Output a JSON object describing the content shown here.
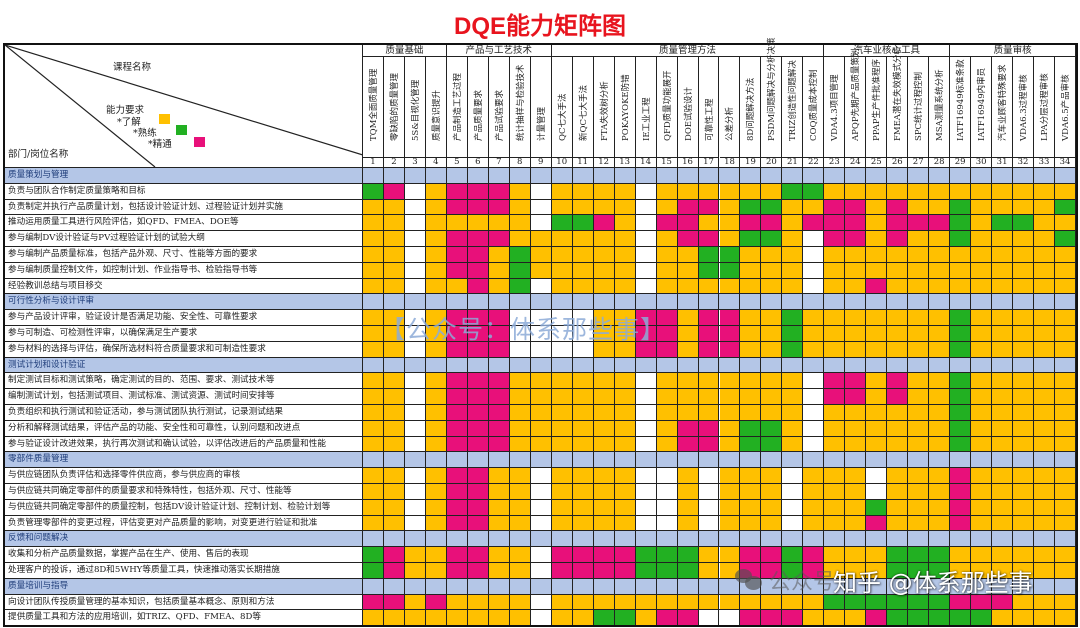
{
  "title": "DQE能力矩阵图",
  "corner": {
    "course_label": "课程名称",
    "dept_label": "部门/岗位名称",
    "legend_title": "能力要求",
    "legend": [
      {
        "label": "*了解",
        "color": "#ffc000"
      },
      {
        "label": "*熟练",
        "color": "#22b022"
      },
      {
        "label": "*精通",
        "color": "#e8107a"
      }
    ]
  },
  "colors": {
    "Y": "#ffc000",
    "G": "#22b022",
    "P": "#e8107a",
    "W": "#ffffff",
    "section": "#b4c6e7",
    "title": "#e8141e"
  },
  "groups": [
    {
      "label": "质量基础",
      "start": 1,
      "end": 4
    },
    {
      "label": "产品与工艺技术",
      "start": 5,
      "end": 9
    },
    {
      "label": "质量管理方法",
      "start": 10,
      "end": 22
    },
    {
      "label": "汽车业核心工具",
      "start": 23,
      "end": 28
    },
    {
      "label": "质量审核",
      "start": 29,
      "end": 34
    }
  ],
  "courses": [
    "TQM全面质量管理",
    "零缺陷的质量管理",
    "5S&目视化管理",
    "质量意识提升",
    "产品制造工艺过程",
    "产品质量要求",
    "产品试验要求",
    "统计抽样与检验技术",
    "计量管理",
    "QC七大手法",
    "新QC七大手法",
    "FTA失效树分析",
    "POKAYOKE防错",
    "IE工业工程",
    "QFD质量功能展开",
    "DOE试验设计",
    "可靠性工程",
    "公差分析",
    "8D问题解决方法",
    "PSDM问题解决与分析决策",
    "TRIZ创造性问题解决",
    "COQ质量成本控制",
    "VDA4.3项目管理",
    "APQP先期产品质量策划",
    "PPAP生产件批准程序",
    "FMEA潜在失效模式分析",
    "SPC统计过程控制",
    "MSA测量系统分析",
    "IATF16949标准条款",
    "IATF16949内审员",
    "汽车业顾客特殊要求",
    "VDA6.3过程审核",
    "LPA分层过程审核",
    "VDA6.5产品审核"
  ],
  "sections": [
    {
      "title": "质量策划与管理",
      "rows": [
        {
          "label": "负责与团队合作制定质量策略和目标",
          "cells": "GPWYPPPYWYYYYWYYYYYYGGYYYYYYYYYYYY"
        },
        {
          "label": "负责制定并执行产品质量计划，包括设计验证计划、过程验证计划并实施",
          "cells": "YYWYPPPYWYYYYWYPPYGGYYPPYPYYGYYYYG"
        },
        {
          "label": "推动运用质量工具进行风险评估，如QFD、FMEA、DOE等",
          "cells": "YYWYYYYYWGGPYWPPYYPPYPPPYPPPGYGGYY"
        },
        {
          "label": "参与编制DV设计验证与PV过程验证计划的试验大纲",
          "cells": "YYWYPPPYYYYYYWYPPYGGYWPPYPYYGYYYYG"
        },
        {
          "label": "参与编制产品质量标准，包括产品外观、尺寸、性能等方面的要求",
          "cells": "YYWYPPYGYYYYYWYYGGYYYWYYYYYYYYYYYY"
        },
        {
          "label": "参与编制质量控制文件，如控制计划、作业指导书、检验指导书等",
          "cells": "YYWYPPYGYYYYYWYYGGYYYWYYYYYYYYYYYY"
        },
        {
          "label": "经验教训总结与项目移交",
          "cells": "YYWYYPYGWYYYYWYYYYYYYWYYPYYYYYYYYY"
        }
      ]
    },
    {
      "title": "可行性分析与设计评审",
      "rows": [
        {
          "label": "参与产品设计评审，验证设计是否满足功能、安全性、可靠性要求",
          "cells": "YYWYPPPWWWWYYPPYPPYYGYYYYYYYGYYYYY"
        },
        {
          "label": "参与可制造、可检测性评审，以确保满足生产要求",
          "cells": "YYWYPPPWWWWYYPPYPPYYGYYYYYYYGYYYYY"
        },
        {
          "label": "参与材料的选择与评估，确保所选材料符合质量要求和可制造性要求",
          "cells": "YYWYPPPWWWWYYPPYPPYYGYYYYYYYGYYYYY"
        }
      ]
    },
    {
      "title": "测试计划和设计验证",
      "rows": [
        {
          "label": "制定测试目标和测试策略，确定测试的目的、范围、要求、测试技术等",
          "cells": "YYWYPPPYYYYYYWYYYYYYYWPPYPYYGYYYYY"
        },
        {
          "label": "编制测试计划，包括测试项目、测试标准、测试资源、测试时间安排等",
          "cells": "YYWYPPPYYYYYYWYYYYYYYWPPYPYYGYYYYY"
        },
        {
          "label": "负责组织和执行测试和验证活动，参与测试团队执行测试，记录测试结果",
          "cells": "YYWYPPPYYYYYYWYYYYYYYWYYYYYYGYYYYY"
        },
        {
          "label": "分析和解释测试结果，评估产品的功能、安全性和可靠性，认别问题和改进点",
          "cells": "YYWYPPPYYYYYYWYPPYGGYWYYYYYYGYYYYY"
        },
        {
          "label": "参与验证设计改进效果，执行再次测试和确认试验，以评估改进后的产品质量和性能",
          "cells": "YYWYPPPYYYYYYWYPPYGGYWYYYYYYGYYYYY"
        }
      ]
    },
    {
      "title": "零部件质量管理",
      "rows": [
        {
          "label": "与供应链团队负责评估和选择零件供应商，参与供应商的审核",
          "cells": "YYWYPPYYWYYYYWWYWYYYWYYYWYYYPYYYYY"
        },
        {
          "label": "与供应链共同确定零部件的质量要求和特殊特性，包括外观、尺寸、性能等",
          "cells": "YYWYPPYYWYYYYWWYWYYYWYYYWYYYPYYYYY"
        },
        {
          "label": "与供应链共同确定零部件的质量控制，包括DV设计验证计划、控制计划、检验计划等",
          "cells": "YYWYPPYYWYYYYWWYWYYYWYYYGYYYPYYYYY"
        },
        {
          "label": "负责管理零部件的变更过程，评估变更对产品质量的影响，对变更进行验证和批准",
          "cells": "YYWYPPYYWYYYYWWYWYYYWYYYPYYYPYYYYY"
        }
      ]
    },
    {
      "title": "反馈和问题解决",
      "rows": [
        {
          "label": "收集和分析产品质量数据，掌握产品在生产、使用、售后的表现",
          "cells": "GPYYPPYYWPPPPGGGYYPPGPYYYGGGYYYYYY"
        },
        {
          "label": "处理客户的投诉，通过8D和5WHY等质量工具，快速推动落实长期措施",
          "cells": "GPYYPPYYWPPPPGGGYYPPGPYYYGGGYYYYYY"
        }
      ]
    },
    {
      "title": "质量培训与指导",
      "rows": [
        {
          "label": "向设计团队传授质量管理的基本知识，包括质量基本概念、原则和方法",
          "cells": "PPYPYYYYWYYYYYYYYYYYYYGGGGGGPPPYYY"
        },
        {
          "label": "提供质量工具和方法的应用培训，如TRIZ、QFD、FMEA、8D等",
          "cells": "YYYYYYYYWYYGGYPPWWPPPYYYPGGGGGYYYY"
        }
      ]
    }
  ],
  "watermarks": {
    "center": "【公众号：体系那些事】",
    "bottom_ghost": "公众号",
    "bottom": "知乎 @体系那些事"
  }
}
